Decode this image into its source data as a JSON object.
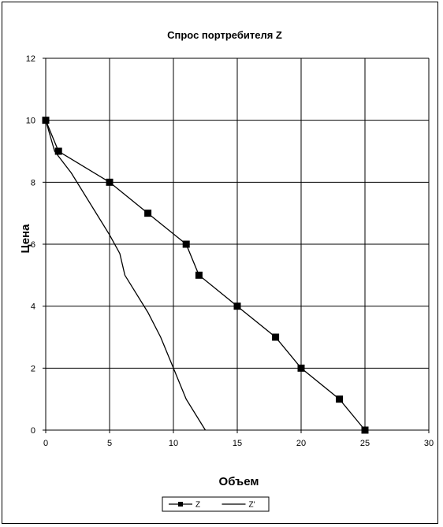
{
  "chart_data": {
    "type": "line",
    "title": "Спрос портребителя Z",
    "xlabel": "Объем",
    "ylabel": "Цена",
    "xlim": [
      0,
      30
    ],
    "ylim": [
      0,
      12
    ],
    "x_ticks": [
      0,
      5,
      10,
      15,
      20,
      25,
      30
    ],
    "y_ticks": [
      0,
      2,
      4,
      6,
      8,
      10,
      12
    ],
    "grid": true,
    "legend_position": "bottom",
    "series": [
      {
        "name": "Z",
        "marker": "square",
        "color": "#000000",
        "points": [
          [
            0,
            10
          ],
          [
            1,
            9
          ],
          [
            5,
            8
          ],
          [
            8,
            7
          ],
          [
            11,
            6
          ],
          [
            12,
            5
          ],
          [
            15,
            4
          ],
          [
            18,
            3
          ],
          [
            20,
            2
          ],
          [
            23,
            1
          ],
          [
            25,
            0
          ]
        ]
      },
      {
        "name": "Z'",
        "marker": "none",
        "color": "#000000",
        "points": [
          [
            0,
            10
          ],
          [
            0.7,
            9
          ],
          [
            2,
            8.3
          ],
          [
            5,
            6.3
          ],
          [
            5.8,
            5.7
          ],
          [
            6.2,
            5
          ],
          [
            8,
            3.8
          ],
          [
            9,
            3
          ],
          [
            10,
            2
          ],
          [
            11,
            1
          ],
          [
            12.5,
            0
          ]
        ]
      }
    ]
  }
}
